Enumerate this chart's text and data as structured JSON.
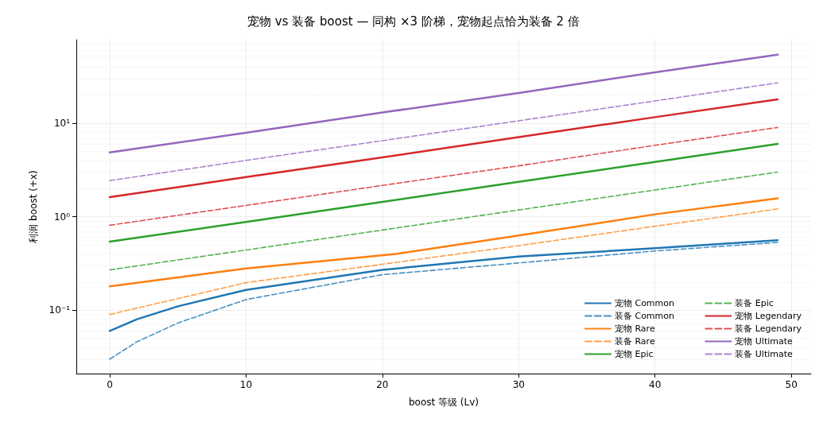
{
  "chart_data": {
    "type": "line",
    "title": "宠物 vs 装备 boost — 同构 ×3 阶梯，宠物起点恰为装备 2 倍",
    "xlabel": "boost 等级 (Lv)",
    "ylabel": "利润 boost (+x)",
    "log": "y",
    "xlim": [
      -2.45,
      51.45
    ],
    "xticks": [
      0,
      10,
      20,
      30,
      40,
      50
    ],
    "ylim": [
      0.021,
      78
    ],
    "yticks": [
      {
        "value": 0.1,
        "label": "10⁻¹"
      },
      {
        "value": 1,
        "label": "10⁰"
      },
      {
        "value": 10,
        "label": "10¹"
      }
    ],
    "grid": true,
    "legend": "bottom right",
    "marker": "none",
    "series": [
      {
        "name": "宠物 Common",
        "color": "#1f77b4",
        "line_style": "solid",
        "x": [
          0,
          2,
          5,
          10,
          20,
          30,
          40,
          49
        ],
        "values": [
          0.06,
          0.08,
          0.11,
          0.165,
          0.27,
          0.375,
          0.46,
          0.56
        ]
      },
      {
        "name": "装备 Common",
        "color": "#4a90c2",
        "line_style": "dashed",
        "x": [
          0,
          2,
          5,
          10,
          20,
          30,
          40,
          49
        ],
        "values": [
          0.03,
          0.046,
          0.073,
          0.13,
          0.24,
          0.32,
          0.43,
          0.53
        ]
      },
      {
        "name": "宠物 Rare",
        "color": "#ff7f0e",
        "line_style": "solid",
        "x": [
          0,
          10,
          21,
          30,
          40,
          49
        ],
        "values": [
          0.18,
          0.28,
          0.4,
          0.63,
          1.06,
          1.57
        ]
      },
      {
        "name": "装备 Rare",
        "color": "#ff9f4a",
        "line_style": "dashed",
        "x": [
          0,
          10,
          20,
          30,
          40,
          49
        ],
        "values": [
          0.09,
          0.197,
          0.31,
          0.49,
          0.79,
          1.21
        ]
      },
      {
        "name": "宠物 Epic",
        "color": "#2ca02c",
        "line_style": "solid",
        "x": [
          0,
          10,
          20,
          30,
          40,
          49
        ],
        "values": [
          0.54,
          0.88,
          1.44,
          2.36,
          3.85,
          6
        ]
      },
      {
        "name": "装备 Epic",
        "color": "#56b356",
        "line_style": "dashed",
        "x": [
          0,
          10,
          20,
          30,
          40,
          49
        ],
        "values": [
          0.27,
          0.44,
          0.72,
          1.18,
          1.93,
          3
        ]
      },
      {
        "name": "宠物 Legendary",
        "color": "#d62728",
        "line_style": "solid",
        "x": [
          0,
          10,
          20,
          30,
          40,
          49
        ],
        "values": [
          1.62,
          2.65,
          4.3,
          7.1,
          11.6,
          18
        ]
      },
      {
        "name": "装备 Legendary",
        "color": "#de5253",
        "line_style": "dashed",
        "x": [
          0,
          10,
          20,
          30,
          40,
          49
        ],
        "values": [
          0.81,
          1.32,
          2.16,
          3.5,
          5.8,
          9
        ]
      },
      {
        "name": "宠物 Ultimate",
        "color": "#9467bd",
        "line_style": "solid",
        "x": [
          0,
          10,
          20,
          30,
          40,
          49
        ],
        "values": [
          4.86,
          7.9,
          13,
          21,
          35,
          54
        ]
      },
      {
        "name": "装备 Ultimate",
        "color": "#a985ca",
        "line_style": "dashed",
        "x": [
          0,
          10,
          20,
          30,
          40,
          49
        ],
        "values": [
          2.43,
          4,
          6.5,
          10.6,
          17.3,
          27
        ]
      }
    ]
  }
}
